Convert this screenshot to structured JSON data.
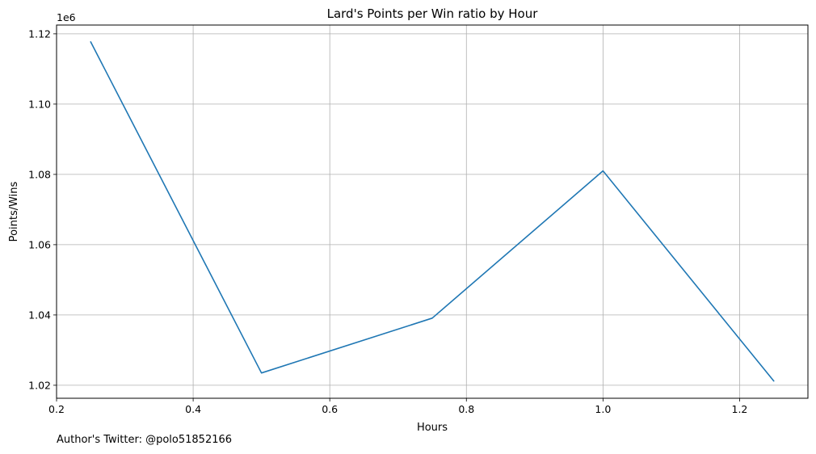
{
  "chart_data": {
    "type": "line",
    "title": "Lard's Points per Win ratio by Hour",
    "xlabel": "Hours",
    "ylabel": "Points/Wins",
    "y_offset_text": "1e6",
    "y_scale": 1000000,
    "xlim": [
      0.2,
      1.3
    ],
    "ylim": [
      1.0163,
      1.1225
    ],
    "x_ticks": [
      0.2,
      0.4,
      0.6,
      0.8,
      1.0,
      1.2
    ],
    "x_tick_labels": [
      "0.2",
      "0.4",
      "0.6",
      "0.8",
      "1.0",
      "1.2"
    ],
    "y_ticks": [
      1.02,
      1.04,
      1.06,
      1.08,
      1.1,
      1.12
    ],
    "y_tick_labels": [
      "1.02",
      "1.04",
      "1.06",
      "1.08",
      "1.10",
      "1.12"
    ],
    "grid": true,
    "series": [
      {
        "x": [
          0.25,
          0.5,
          0.75,
          1.0,
          1.25
        ],
        "y": [
          1117700,
          1023500,
          1039100,
          1081000,
          1021200
        ],
        "color": "#1f77b4"
      }
    ]
  },
  "footer": {
    "text": "Author's Twitter: @polo51852166"
  }
}
